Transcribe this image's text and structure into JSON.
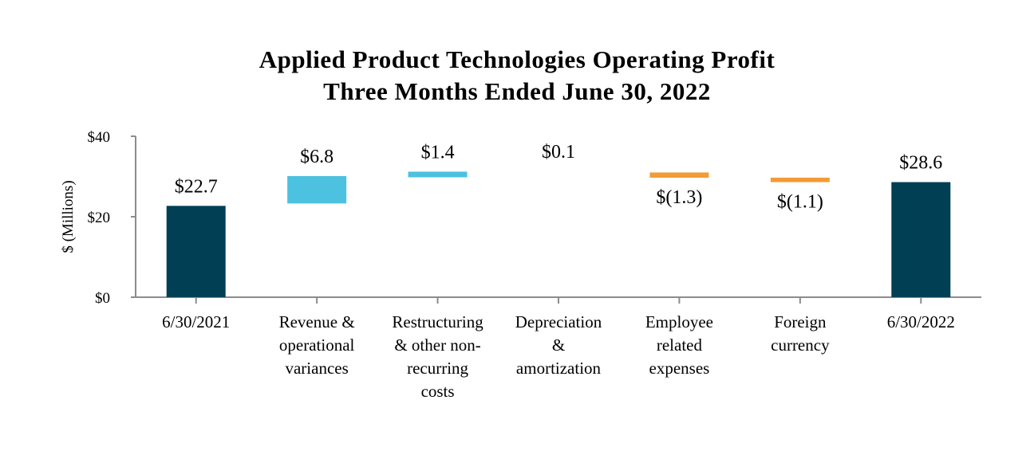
{
  "chart_data": {
    "type": "bar",
    "subtype": "waterfall",
    "title": "Applied Product Technologies Operating Profit",
    "subtitle": "Three Months Ended June 30, 2022",
    "ylabel": "$ (Millions)",
    "xlabel": "",
    "ylim": [
      0,
      40
    ],
    "yticks": [
      {
        "value": 0,
        "label": "$0"
      },
      {
        "value": 20,
        "label": "$20"
      },
      {
        "value": 40,
        "label": "$40"
      }
    ],
    "categories": [
      [
        "6/30/2021"
      ],
      [
        "Revenue &",
        "operational",
        "variances"
      ],
      [
        "Restructuring",
        "& other non-",
        "recurring",
        "costs"
      ],
      [
        "Depreciation",
        "&",
        "amortization"
      ],
      [
        "Employee",
        "related",
        "expenses"
      ],
      [
        "Foreign",
        "currency"
      ],
      [
        "6/30/2022"
      ]
    ],
    "bars": [
      {
        "kind": "total",
        "start": 0,
        "end": 22.7,
        "label": "$22.7"
      },
      {
        "kind": "increase",
        "start": 23.3,
        "end": 30.1,
        "label": "$6.8"
      },
      {
        "kind": "increase",
        "start": 29.8,
        "end": 31.2,
        "label": "$1.4"
      },
      {
        "kind": "increase",
        "start": 31.2,
        "end": 31.3,
        "label": "$0.1"
      },
      {
        "kind": "decrease",
        "start": 31.0,
        "end": 29.7,
        "label": "$(1.3)"
      },
      {
        "kind": "decrease",
        "start": 29.7,
        "end": 28.6,
        "label": "$(1.1)"
      },
      {
        "kind": "total",
        "start": 0,
        "end": 28.6,
        "label": "$28.6"
      }
    ],
    "colors": {
      "total": "#003f54",
      "increase": "#4cc1e0",
      "decrease": "#f29b38",
      "axis": "#8c8c8c"
    }
  }
}
